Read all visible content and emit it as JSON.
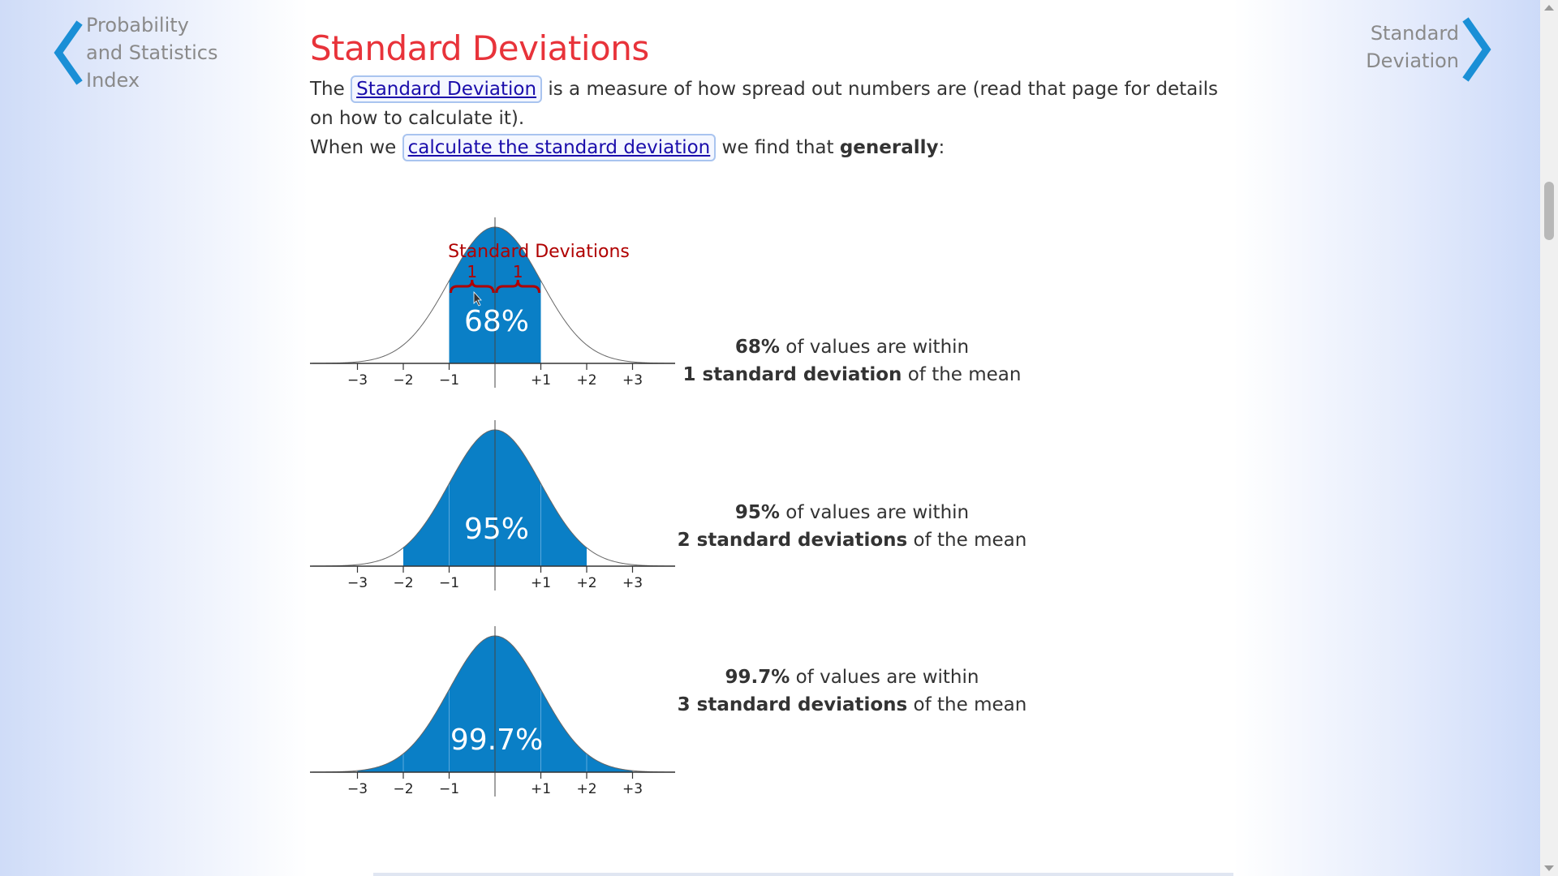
{
  "nav": {
    "prev_label_lines": [
      "Probability",
      "and Statistics",
      "Index"
    ],
    "next_label_lines": [
      "Standard",
      "Deviation"
    ],
    "chevron_color": "#1a8fd6"
  },
  "page": {
    "title": "Standard Deviations",
    "p1": {
      "before": "The ",
      "link": "Standard Deviation",
      "after": " is a measure of how spread out numbers are (read that page for details on how to calculate it)."
    },
    "p2": {
      "before": "When we ",
      "link": "calculate the standard deviation",
      "after_plain": " we find that ",
      "after_bold": "generally",
      "after_end": ":"
    }
  },
  "figures": [
    {
      "percent_label": "68%",
      "band": 1,
      "bracket_title": "Standard Deviations",
      "bracket_labels": [
        "1",
        "1"
      ],
      "caption_bold1": "68%",
      "caption_text1": " of values are within",
      "caption_bold2": "1 standard deviation",
      "caption_text2": " of the mean"
    },
    {
      "percent_label": "95%",
      "band": 2,
      "caption_bold1": "95%",
      "caption_text1": " of values are within",
      "caption_bold2": "2 standard deviations",
      "caption_text2": " of the mean"
    },
    {
      "percent_label": "99.7%",
      "band": 3,
      "caption_bold1": "99.7%",
      "caption_text1": " of values are within",
      "caption_bold2": "3 standard deviations",
      "caption_text2": " of the mean"
    }
  ],
  "axis_ticks": [
    "−3",
    "−2",
    "−1",
    "+1",
    "+2",
    "+3"
  ],
  "colors": {
    "title": "#e8333a",
    "fill": "#0a7fc6",
    "link": "#1a0dab",
    "bracket": "#b00000"
  }
}
